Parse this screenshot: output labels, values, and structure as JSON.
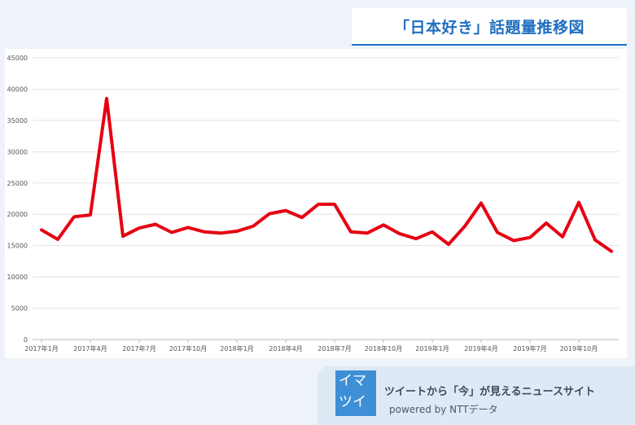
{
  "title": "「日本好き」話題量推移図",
  "footer": {
    "logo_line1": "イマ",
    "logo_line2": "ツイ",
    "tagline": "ツイートから「今」が見えるニュースサイト",
    "powered": "powered by  NTTデータ"
  },
  "colors": {
    "line": "#e60012",
    "title": "#1f6fbf",
    "logo": "#3f8fd6"
  },
  "chart_data": {
    "type": "line",
    "title": "「日本好き」話題量推移図",
    "xlabel": "",
    "ylabel": "",
    "ylim": [
      0,
      45000
    ],
    "yticks": [
      0,
      5000,
      10000,
      15000,
      20000,
      25000,
      30000,
      35000,
      40000,
      45000
    ],
    "xtick_labels": [
      "2017年1月",
      "2017年4月",
      "2017年7月",
      "2017年10月",
      "2018年1月",
      "2018年4月",
      "2018年7月",
      "2018年10月",
      "2019年1月",
      "2019年4月",
      "2019年7月",
      "2019年10月"
    ],
    "grid": true,
    "legend": "none",
    "series": [
      {
        "values": [
          17500,
          16000,
          19600,
          19900,
          38500,
          16500,
          17800,
          18400,
          17100,
          17900,
          17200,
          17000,
          17300,
          18100,
          20100,
          20600,
          19500,
          21600,
          21600,
          17200,
          17000,
          18300,
          16900,
          16100,
          17200,
          15200,
          18100,
          21800,
          17100,
          15800,
          16300,
          18600,
          16400,
          21900,
          15900,
          14100
        ]
      }
    ]
  }
}
